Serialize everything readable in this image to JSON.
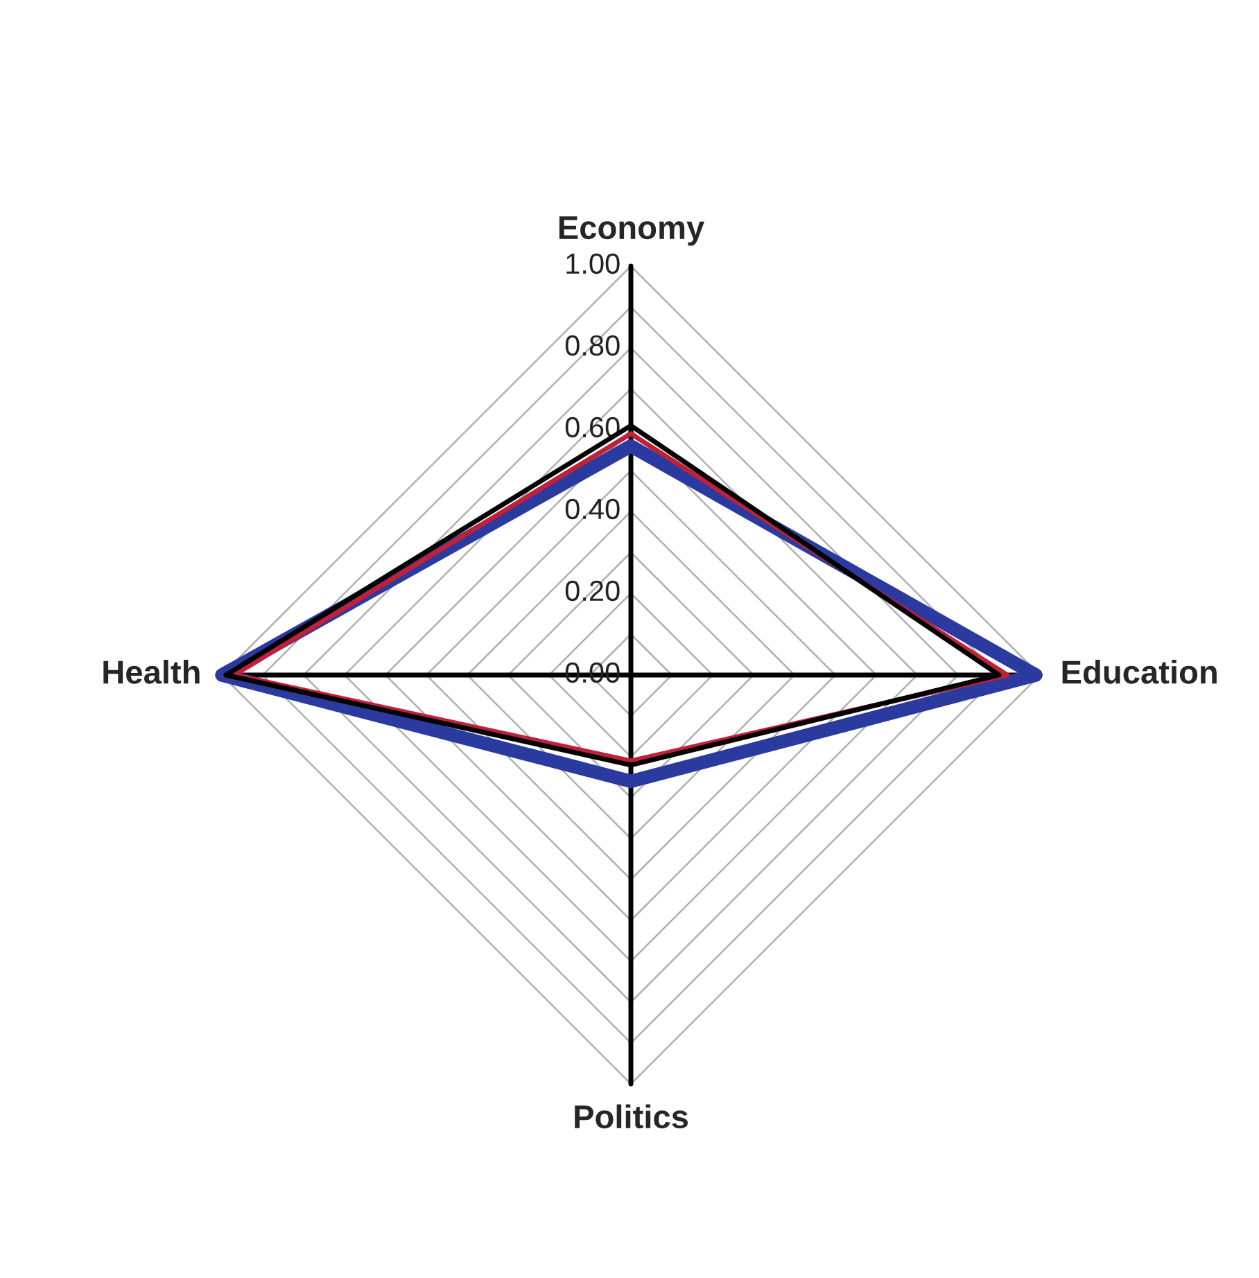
{
  "chart_data": {
    "type": "radar",
    "categories": [
      "Economy",
      "Education",
      "Politics",
      "Health"
    ],
    "series": [
      {
        "color": "#2b3a9e",
        "values": [
          0.56,
          0.99,
          0.26,
          1.0
        ]
      },
      {
        "color": "#c0203a",
        "values": [
          0.59,
          0.92,
          0.21,
          0.97
        ]
      },
      {
        "color": "#000000",
        "values": [
          0.61,
          0.9,
          0.22,
          0.99
        ]
      }
    ],
    "ylim": [
      0,
      1
    ],
    "yticks": [
      {
        "value": 0,
        "label": "0.00"
      },
      {
        "value": 0.2,
        "label": "0.20"
      },
      {
        "value": 0.4,
        "label": "0.40"
      },
      {
        "value": 0.6,
        "label": "0.60"
      },
      {
        "value": 0.8,
        "label": "0.80"
      },
      {
        "value": 1,
        "label": "1.00"
      }
    ],
    "grid": true
  }
}
